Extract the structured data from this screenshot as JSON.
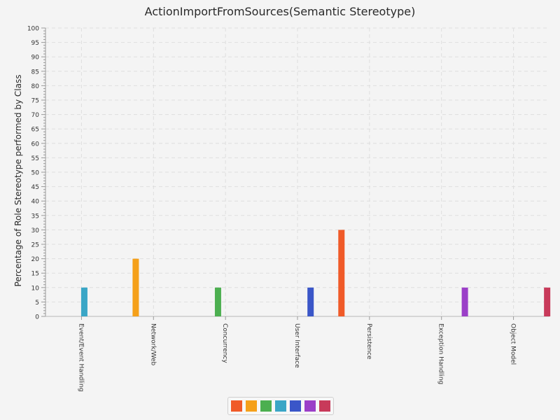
{
  "chart_data": {
    "type": "bar",
    "title": "ActionImportFromSources(Semantic Stereotype)",
    "xlabel": "",
    "ylabel": "Percentage of Role Stereotype performed by Class",
    "ylim": [
      0,
      100
    ],
    "ytick_step": 5,
    "grid": true,
    "legend_position": "bottom",
    "categories": [
      "Event/Event Handling",
      "Network/Web",
      "Concurrency",
      "User Interface",
      "Persistence",
      "Exception Handling",
      "Object Model"
    ],
    "series": [
      {
        "values": [
          0,
          0,
          0,
          0,
          30,
          0,
          0
        ],
        "color": "#f05a28"
      },
      {
        "values": [
          0,
          20,
          0,
          0,
          0,
          0,
          0
        ],
        "color": "#f5a01a"
      },
      {
        "values": [
          0,
          0,
          10,
          0,
          0,
          0,
          0
        ],
        "color": "#4caf50"
      },
      {
        "values": [
          10,
          0,
          0,
          0,
          0,
          0,
          0
        ],
        "color": "#3aa6c6"
      },
      {
        "values": [
          0,
          0,
          0,
          10,
          0,
          0,
          0
        ],
        "color": "#3a56c8"
      },
      {
        "values": [
          0,
          0,
          0,
          0,
          0,
          10,
          0
        ],
        "color": "#9b3fc8"
      },
      {
        "values": [
          0,
          0,
          0,
          0,
          0,
          0,
          10
        ],
        "color": "#c83a5a"
      }
    ]
  }
}
